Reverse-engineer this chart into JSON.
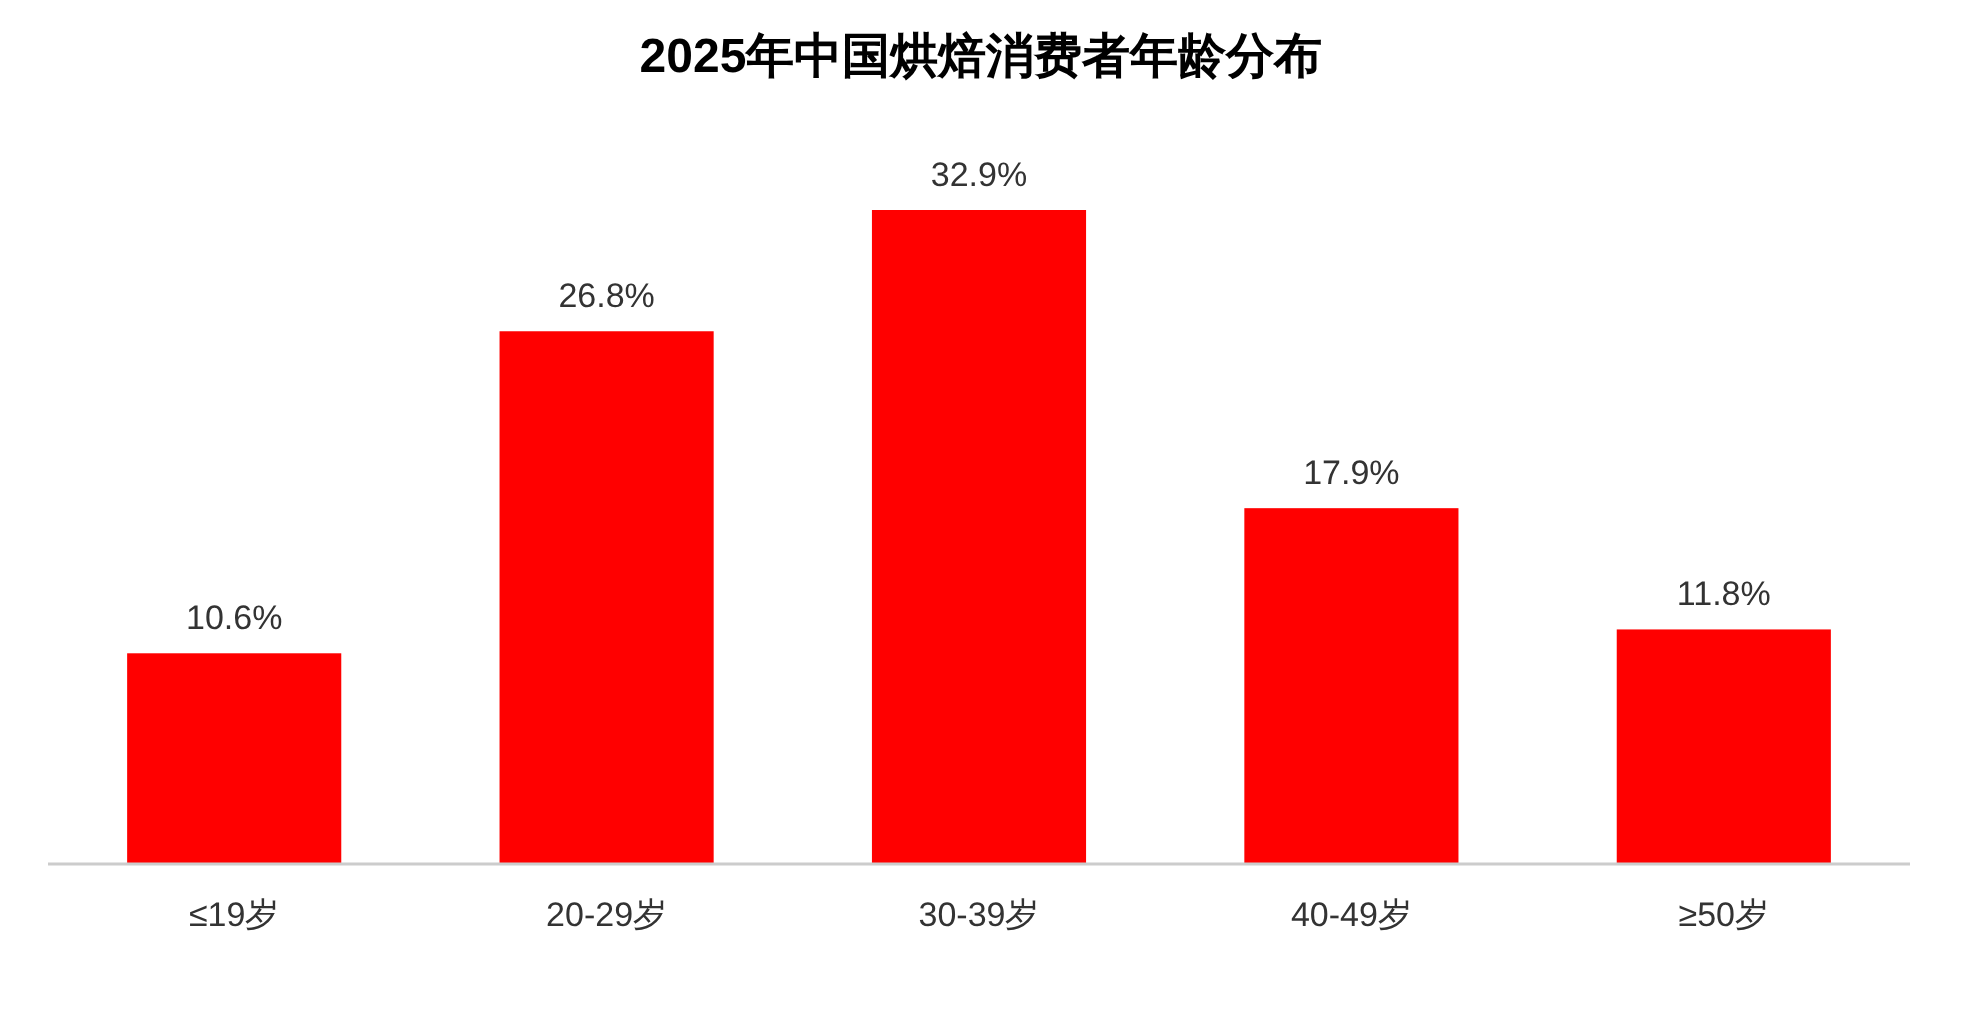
{
  "chart_data": {
    "type": "bar",
    "title": "2025年中国烘焙消费者年龄分布",
    "categories": [
      "≤19岁",
      "20-29岁",
      "30-39岁",
      "40-49岁",
      "≥50岁"
    ],
    "values": [
      10.6,
      26.8,
      32.9,
      17.9,
      11.8
    ],
    "value_labels": [
      "10.6%",
      "26.8%",
      "32.9%",
      "17.9%",
      "11.8%"
    ],
    "color": "#ff0000"
  }
}
